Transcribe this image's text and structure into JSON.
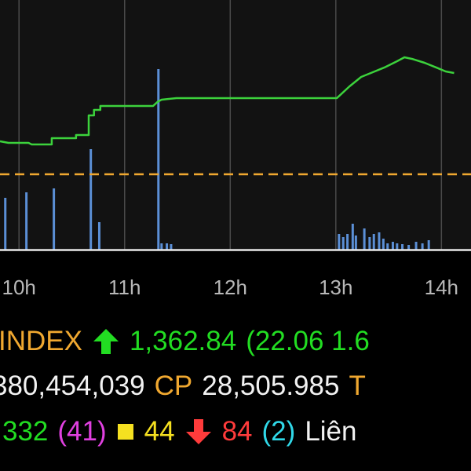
{
  "chart_data": {
    "type": "line",
    "color": "#3cd23c",
    "x": [
      9.82,
      9.9,
      10.09,
      10.12,
      10.31,
      10.31,
      10.54,
      10.54,
      10.66,
      10.66,
      10.71,
      10.71,
      10.77,
      10.77,
      11.27,
      11.31,
      11.35,
      11.49,
      13.01,
      13.13,
      13.24,
      13.35,
      13.46,
      13.58,
      13.65,
      13.72,
      13.84,
      13.95,
      14.04,
      14.12
    ],
    "values": [
      1347.96,
      1347.62,
      1347.62,
      1347.28,
      1347.28,
      1348.65,
      1348.65,
      1349.33,
      1349.33,
      1353.61,
      1353.61,
      1354.8,
      1354.8,
      1355.66,
      1355.66,
      1356.51,
      1357.03,
      1357.37,
      1357.37,
      1359.93,
      1361.98,
      1363.01,
      1364.04,
      1365.4,
      1366.26,
      1365.92,
      1365.06,
      1364.04,
      1363.18,
      1362.84
    ],
    "reference_line": {
      "value": 1340.78,
      "color": "#f0a830"
    },
    "volume": {
      "color": "#5b8fd6",
      "x": [
        9.87,
        10.07,
        10.33,
        10.68,
        10.76,
        11.32,
        11.35,
        11.4,
        11.44,
        13.03,
        13.07,
        13.11,
        13.16,
        13.19,
        13.27,
        13.32,
        13.36,
        13.41,
        13.45,
        13.49,
        13.54,
        13.58,
        13.63,
        13.69,
        13.76,
        13.82,
        13.88
      ],
      "values": [
        66,
        73,
        78,
        128,
        35,
        230,
        8,
        8,
        7,
        20,
        16,
        20,
        33,
        18,
        27,
        16,
        20,
        22,
        14,
        8,
        10,
        8,
        7,
        6,
        10,
        8,
        12
      ]
    },
    "xlim": [
      9.82,
      14.28
    ],
    "ylim": [
      1324.36,
      1378.74
    ],
    "y2lim": [
      0,
      318
    ],
    "xticks": [
      {
        "value": 10,
        "label": "10h"
      },
      {
        "value": 11,
        "label": "11h"
      },
      {
        "value": 12,
        "label": "12h"
      },
      {
        "value": 13,
        "label": "13h"
      },
      {
        "value": 14,
        "label": "14h"
      }
    ],
    "grid": true
  },
  "info": {
    "index_name": "INDEX",
    "index_value": "1,362.84",
    "change": "(22.06 1.6",
    "volume": "380,454,039",
    "cp_label": "CP",
    "cp_value": "28,505.985",
    "t_label": "T",
    "advancers": "332",
    "ceiling": "(41)",
    "unchanged": "44",
    "decliners": "84",
    "floor": "(2)",
    "link_label": "Liên"
  }
}
